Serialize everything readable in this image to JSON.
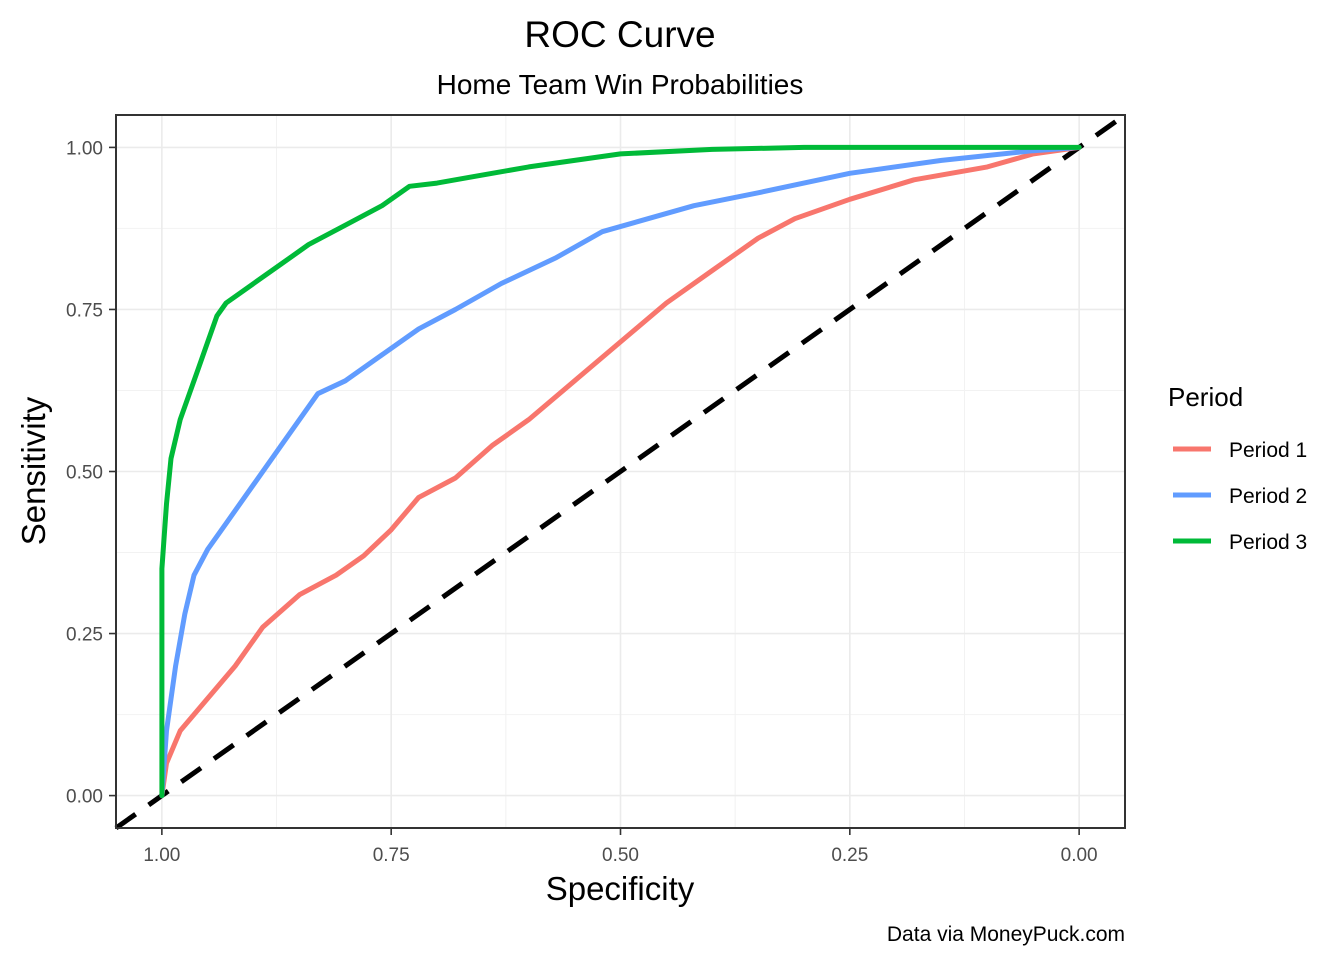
{
  "chart_data": {
    "type": "line",
    "title": "ROC Curve",
    "subtitle": "Home Team Win Probabilities",
    "xlabel": "Specificity",
    "ylabel": "Sensitivity",
    "caption": "Data via MoneyPuck.com",
    "x_reversed": true,
    "xlim": [
      1.05,
      -0.05
    ],
    "ylim": [
      -0.05,
      1.05
    ],
    "x_ticks": [
      1.0,
      0.75,
      0.5,
      0.25,
      0.0
    ],
    "x_tick_labels": [
      "1.00",
      "0.75",
      "0.50",
      "0.25",
      "0.00"
    ],
    "y_ticks": [
      0.0,
      0.25,
      0.5,
      0.75,
      1.0
    ],
    "y_tick_labels": [
      "0.00",
      "0.25",
      "0.50",
      "0.75",
      "1.00"
    ],
    "grid": true,
    "legend": {
      "title": "Period",
      "position": "right"
    },
    "reference_line": {
      "style": "dashed",
      "color": "#000000",
      "points": [
        [
          1.05,
          -0.05
        ],
        [
          -0.05,
          1.05
        ]
      ]
    },
    "series": [
      {
        "name": "Period 1",
        "color": "#F8766D",
        "points": [
          [
            1.0,
            0.0
          ],
          [
            0.995,
            0.05
          ],
          [
            0.98,
            0.1
          ],
          [
            0.95,
            0.15
          ],
          [
            0.92,
            0.2
          ],
          [
            0.89,
            0.26
          ],
          [
            0.85,
            0.31
          ],
          [
            0.81,
            0.34
          ],
          [
            0.78,
            0.37
          ],
          [
            0.75,
            0.41
          ],
          [
            0.72,
            0.46
          ],
          [
            0.68,
            0.49
          ],
          [
            0.64,
            0.54
          ],
          [
            0.6,
            0.58
          ],
          [
            0.55,
            0.64
          ],
          [
            0.5,
            0.7
          ],
          [
            0.45,
            0.76
          ],
          [
            0.4,
            0.81
          ],
          [
            0.35,
            0.86
          ],
          [
            0.31,
            0.89
          ],
          [
            0.25,
            0.92
          ],
          [
            0.18,
            0.95
          ],
          [
            0.1,
            0.97
          ],
          [
            0.05,
            0.99
          ],
          [
            0.0,
            1.0
          ]
        ]
      },
      {
        "name": "Period 2",
        "color": "#619CFF",
        "points": [
          [
            1.0,
            0.0
          ],
          [
            0.995,
            0.1
          ],
          [
            0.985,
            0.2
          ],
          [
            0.975,
            0.28
          ],
          [
            0.965,
            0.34
          ],
          [
            0.95,
            0.38
          ],
          [
            0.93,
            0.42
          ],
          [
            0.9,
            0.48
          ],
          [
            0.87,
            0.54
          ],
          [
            0.85,
            0.58
          ],
          [
            0.83,
            0.62
          ],
          [
            0.8,
            0.64
          ],
          [
            0.76,
            0.68
          ],
          [
            0.72,
            0.72
          ],
          [
            0.68,
            0.75
          ],
          [
            0.63,
            0.79
          ],
          [
            0.57,
            0.83
          ],
          [
            0.52,
            0.87
          ],
          [
            0.47,
            0.89
          ],
          [
            0.42,
            0.91
          ],
          [
            0.35,
            0.93
          ],
          [
            0.25,
            0.96
          ],
          [
            0.15,
            0.98
          ],
          [
            0.05,
            0.995
          ],
          [
            0.0,
            1.0
          ]
        ]
      },
      {
        "name": "Period 3",
        "color": "#00BA38",
        "points": [
          [
            1.0,
            0.0
          ],
          [
            1.0,
            0.35
          ],
          [
            0.995,
            0.45
          ],
          [
            0.99,
            0.52
          ],
          [
            0.98,
            0.58
          ],
          [
            0.97,
            0.62
          ],
          [
            0.96,
            0.66
          ],
          [
            0.95,
            0.7
          ],
          [
            0.94,
            0.74
          ],
          [
            0.93,
            0.76
          ],
          [
            0.9,
            0.79
          ],
          [
            0.87,
            0.82
          ],
          [
            0.84,
            0.85
          ],
          [
            0.8,
            0.88
          ],
          [
            0.76,
            0.91
          ],
          [
            0.73,
            0.94
          ],
          [
            0.7,
            0.945
          ],
          [
            0.66,
            0.955
          ],
          [
            0.6,
            0.97
          ],
          [
            0.55,
            0.98
          ],
          [
            0.5,
            0.99
          ],
          [
            0.4,
            0.997
          ],
          [
            0.3,
            1.0
          ],
          [
            0.0,
            1.0
          ]
        ]
      }
    ]
  }
}
